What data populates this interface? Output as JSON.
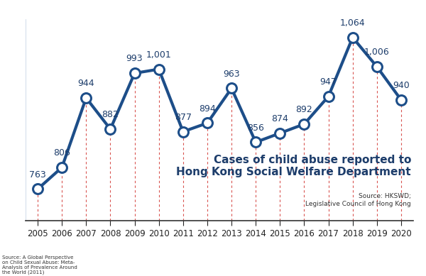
{
  "chart_data": {
    "type": "line",
    "title": "Cases of child abuse reported to Hong Kong Social Welfare Department",
    "subtitle": "Source: HKSWD; Legislative Council of Hong Kong",
    "annotations": [
      "Source: A Global Perspective on Child Sexual Abuse: Meta-Analysis of Prevalence Around the World (2011)"
    ],
    "categories": [
      "2005",
      "2006",
      "2007",
      "2008",
      "2009",
      "2010",
      "2011",
      "2012",
      "2013",
      "2014",
      "2015",
      "2016",
      "2017",
      "2018",
      "2019",
      "2020"
    ],
    "values": [
      763,
      806,
      944,
      882,
      993,
      1001,
      877,
      894,
      963,
      856,
      874,
      892,
      947,
      1064,
      1006,
      940
    ],
    "value_labels": [
      "763",
      "806",
      "944",
      "882",
      "993",
      "1,001",
      "877",
      "894",
      "963",
      "856",
      "874",
      "892",
      "947",
      "1,064",
      "1,006",
      "940"
    ],
    "color": "#1d4e89",
    "marker": "o",
    "line_style": "solid",
    "ylim": [
      700,
      1100
    ],
    "yticks": [],
    "data_labels": true,
    "tick_labels": "x",
    "grid": false
  }
}
